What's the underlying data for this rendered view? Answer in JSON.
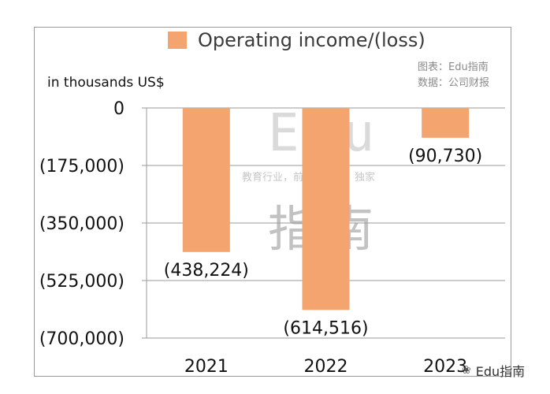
{
  "chart_data": {
    "type": "bar",
    "categories": [
      "2021",
      "2022",
      "2023"
    ],
    "series": [
      {
        "name": "Operating income/(loss)",
        "values": [
          -438224,
          -614516,
          -90730
        ]
      }
    ],
    "data_labels": [
      "(438,224)",
      "(614,516)",
      "(90,730)"
    ],
    "ylabel": "in thousands US$",
    "ylim": [
      -700000,
      0
    ],
    "yticks": [
      0,
      -175000,
      -350000,
      -525000,
      -700000
    ],
    "ytick_labels": [
      "0",
      "(175,000)",
      "(350,000)",
      "(525,000)",
      "(700,000)"
    ],
    "legend": "top",
    "grid": true,
    "bar_color": "#f4a46e"
  },
  "source_lines": [
    "图表：Edu指南",
    "数据：公司财报"
  ],
  "watermark": {
    "edu": "Edu",
    "tagline": "教育行业，前沿、深度、独家",
    "chinese": "指南",
    "corner": "Edu指南"
  }
}
